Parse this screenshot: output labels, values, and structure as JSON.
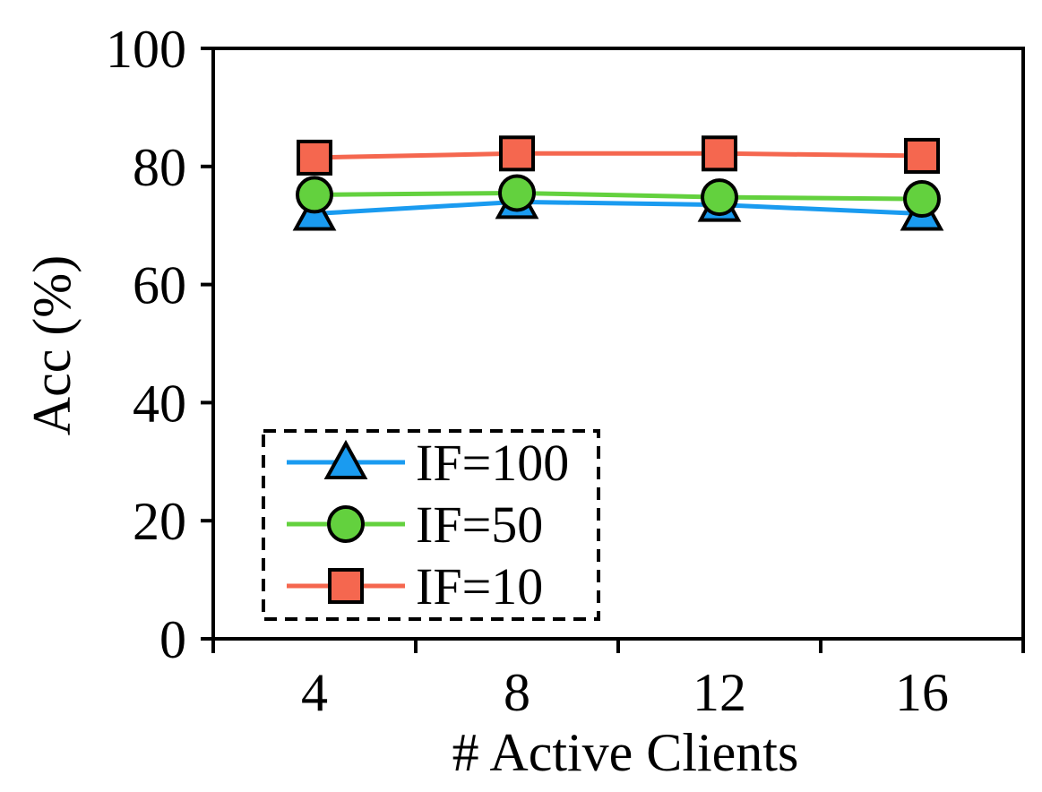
{
  "chart_data": {
    "type": "line",
    "title": "",
    "xlabel": "# Active Clients",
    "ylabel": "Acc (%)",
    "categories": [
      "4",
      "8",
      "12",
      "16"
    ],
    "ylim": [
      0,
      100
    ],
    "yticks": [
      "0",
      "20",
      "40",
      "60",
      "80",
      "100"
    ],
    "legend_position": "bottom-left",
    "grid": false,
    "series": [
      {
        "name": "IF=100",
        "color": "#1a9bf0",
        "marker": "triangle",
        "values": [
          72.0,
          74.0,
          73.5,
          72.0
        ]
      },
      {
        "name": "IF=50",
        "color": "#63d13e",
        "marker": "circle",
        "values": [
          75.2,
          75.5,
          74.8,
          74.5
        ]
      },
      {
        "name": "IF=10",
        "color": "#f5674f",
        "marker": "square",
        "values": [
          81.5,
          82.2,
          82.2,
          81.8
        ]
      }
    ]
  }
}
